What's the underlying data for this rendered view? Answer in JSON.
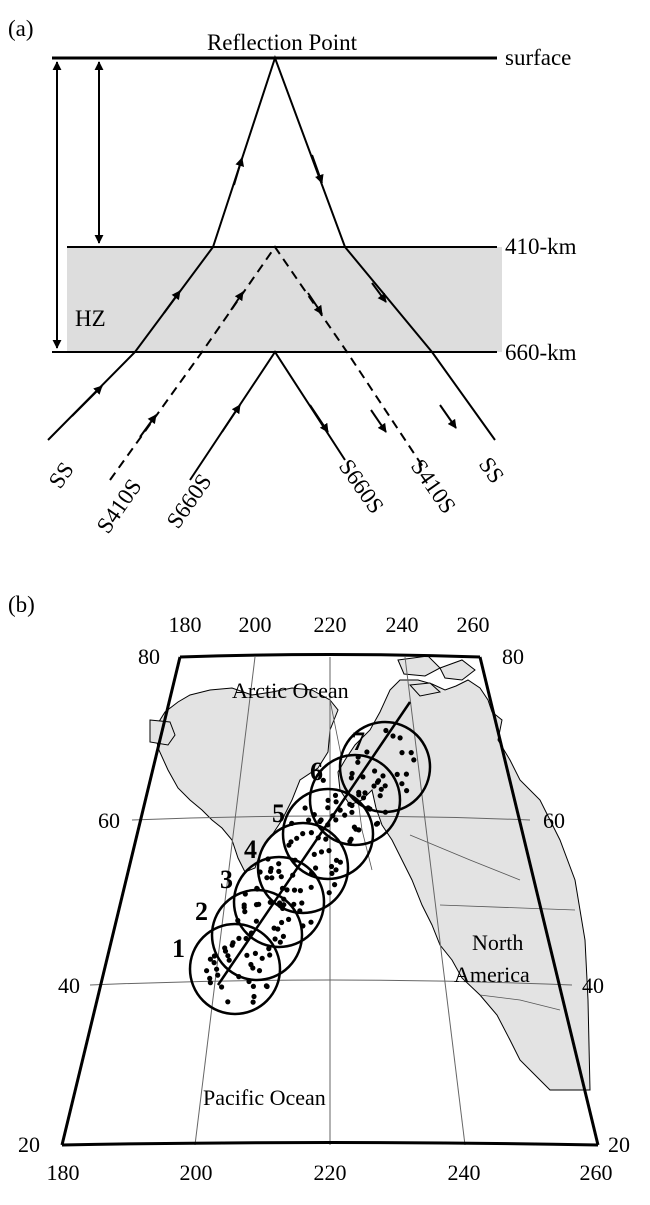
{
  "panel_a": {
    "label": "(a)",
    "title": "Reflection Point",
    "layers": {
      "surface": "surface",
      "d410": "410-km",
      "d660": "660-km"
    },
    "zone": "HZ",
    "rays": [
      "SS",
      "S410S",
      "S660S",
      "S660S",
      "S410S",
      "SS"
    ]
  },
  "panel_b": {
    "label": "(b)",
    "top_lon_ticks": [
      "180",
      "200",
      "220",
      "240",
      "260"
    ],
    "bottom_lon_ticks": [
      "180",
      "200",
      "220",
      "240",
      "260"
    ],
    "left_lat_ticks": [
      "80",
      "60",
      "40",
      "20"
    ],
    "right_lat_ticks": [
      "80",
      "60",
      "40",
      "20"
    ],
    "places": {
      "arctic": "Arctic Ocean",
      "north": "North",
      "america": "America",
      "pacific": "Pacific Ocean"
    },
    "bins": [
      "1",
      "2",
      "3",
      "4",
      "5",
      "6",
      "7"
    ]
  }
}
